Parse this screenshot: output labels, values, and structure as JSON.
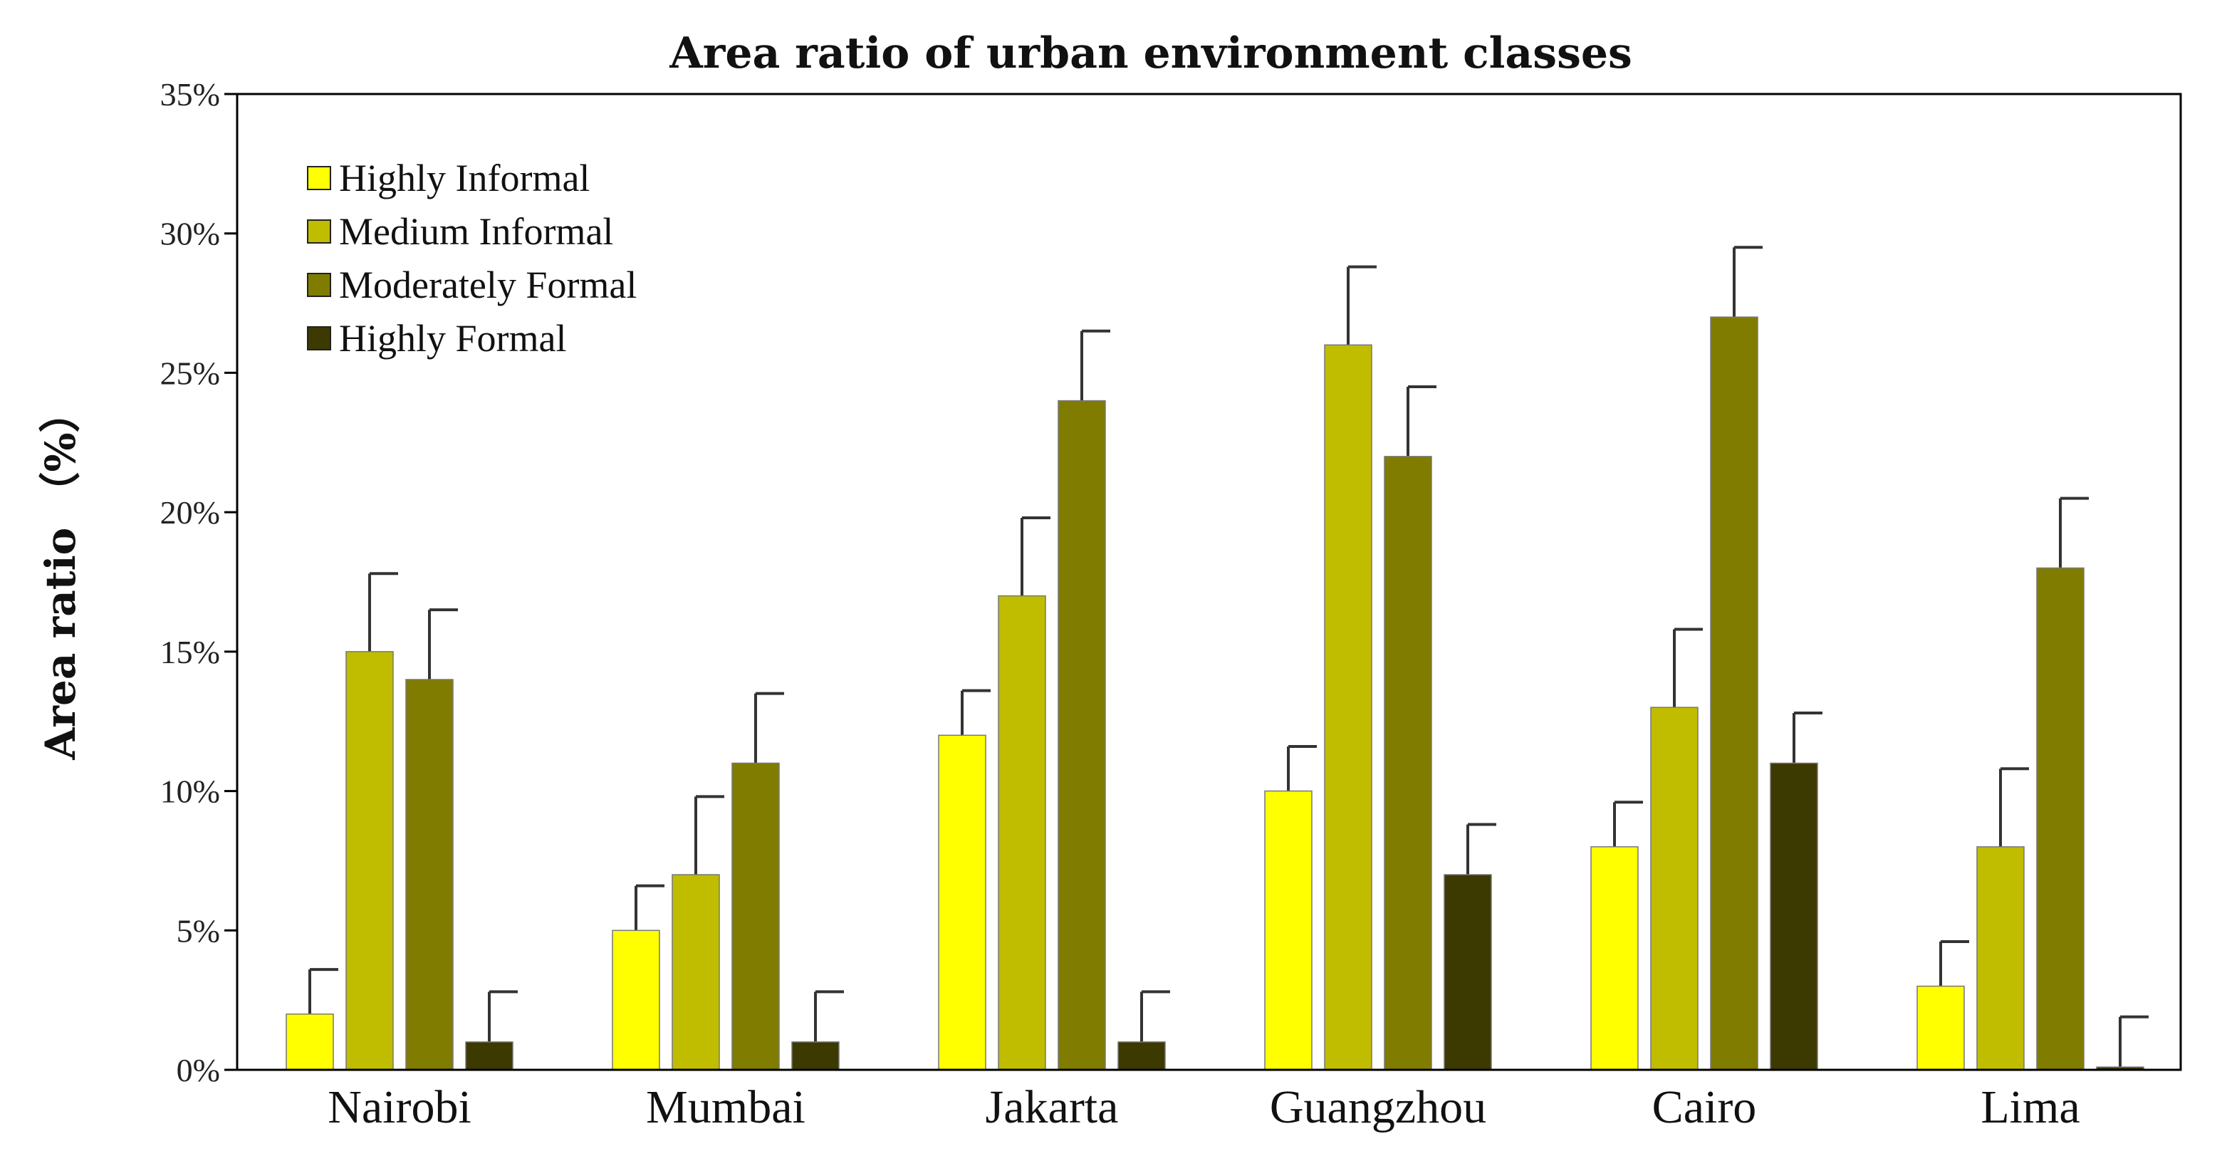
{
  "chart_data": {
    "type": "bar",
    "title": "Area ratio of urban environment classes",
    "xlabel": "",
    "ylabel": "Area ratio （%）",
    "ylim": [
      0,
      35
    ],
    "yticks": [
      0,
      5,
      10,
      15,
      20,
      25,
      30,
      35
    ],
    "ytick_labels": [
      "0%",
      "5%",
      "10%",
      "15%",
      "20%",
      "25%",
      "30%",
      "35%"
    ],
    "categories": [
      "Nairobi",
      "Mumbai",
      "Jakarta",
      "Guangzhou",
      "Cairo",
      "Lima"
    ],
    "legend_position": "top-left",
    "series": [
      {
        "name": "Highly Informal",
        "color": "#FFFF00",
        "values": [
          2,
          5,
          12,
          10,
          8,
          3
        ],
        "error_upper": [
          3.6,
          6.6,
          13.6,
          11.6,
          9.6,
          4.6
        ]
      },
      {
        "name": "Medium Informal",
        "color": "#C0BC00",
        "values": [
          15,
          7,
          17,
          26,
          13,
          8
        ],
        "error_upper": [
          17.8,
          9.8,
          19.8,
          28.8,
          15.8,
          10.8
        ]
      },
      {
        "name": "Moderately Formal",
        "color": "#807C00",
        "values": [
          14,
          11,
          24,
          22,
          27,
          18
        ],
        "error_upper": [
          16.5,
          13.5,
          26.5,
          24.5,
          29.5,
          20.5
        ]
      },
      {
        "name": "Highly Formal",
        "color": "#3C3A00",
        "values": [
          1,
          1,
          1,
          7,
          11,
          0.1
        ],
        "error_upper": [
          2.8,
          2.8,
          2.8,
          8.8,
          12.8,
          1.9
        ]
      }
    ]
  }
}
